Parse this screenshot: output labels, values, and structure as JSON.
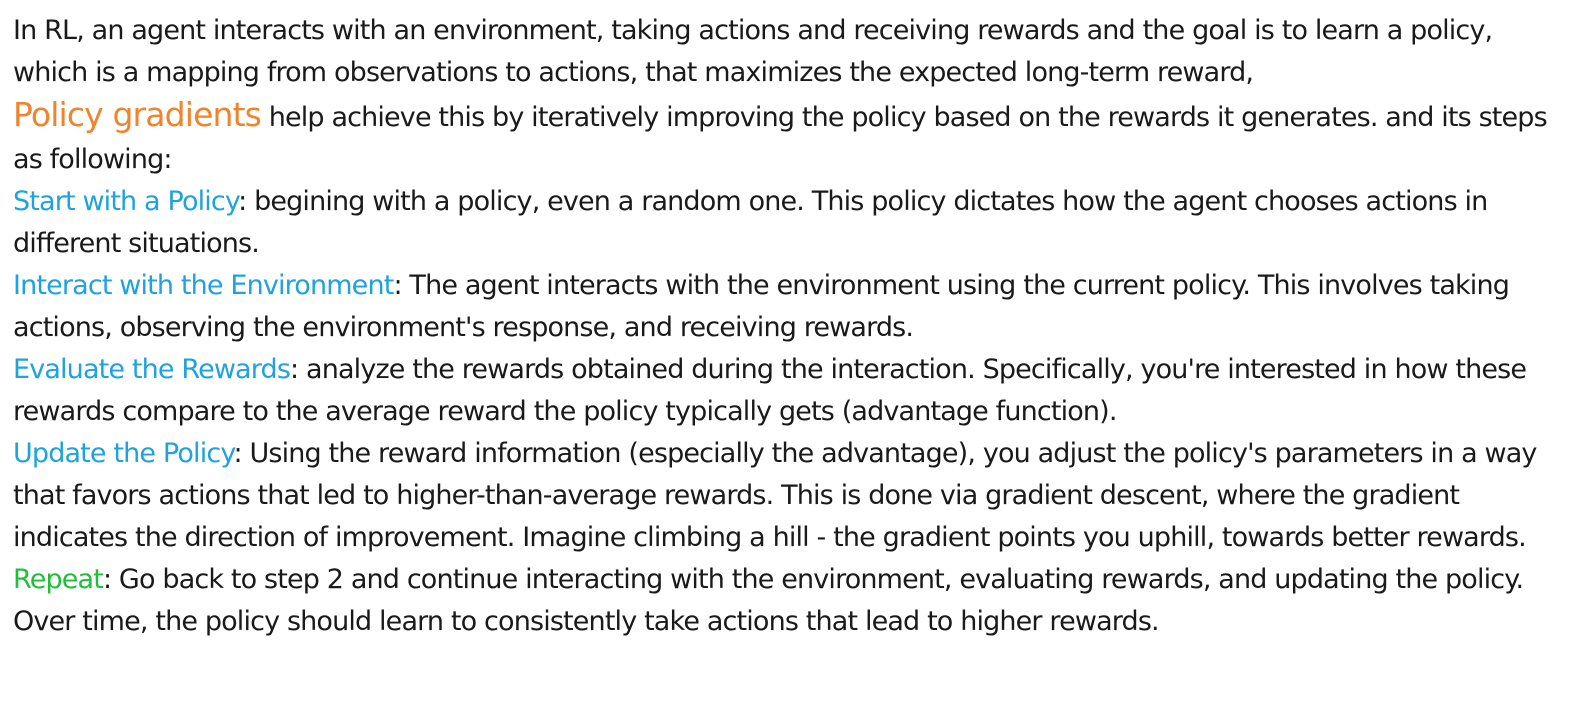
{
  "intro": {
    "line1": "In RL, an agent interacts with an environment, taking actions and receiving rewards and the goal is to learn a policy, which is a mapping from observations to actions, that maximizes the expected long-term reward,",
    "highlight": "Policy gradients",
    "line2": " help achieve this by iteratively improving the policy based on the rewards it generates. and its steps as following:"
  },
  "steps": [
    {
      "term": "Start with a Policy",
      "text": ": begining with a policy, even a random one. This policy dictates how the agent chooses actions in different situations."
    },
    {
      "term": "Interact with the Environment",
      "text": ": The agent interacts with the environment using the current policy. This involves taking actions, observing the environment's response, and receiving rewards."
    },
    {
      "term": "Evaluate the Rewards",
      "text": ": analyze the rewards obtained during the interaction. Specifically, you're interested in how these rewards compare to the average reward the policy typically gets (advantage function)."
    },
    {
      "term": "Update the Policy",
      "text": ": Using the reward information (especially the advantage), you adjust the policy's parameters in a way that favors actions that led to higher-than-average rewards. This is done via gradient descent, where the gradient indicates the direction of improvement. Imagine climbing a hill - the gradient points you uphill, towards better rewards."
    },
    {
      "term": "Repeat",
      "text": ": Go back to step 2 and continue interacting with the environment, evaluating rewards, and updating the policy. Over time, the policy should learn to consistently take actions that lead to higher rewards."
    }
  ],
  "colors": {
    "highlight_orange": "#f0842c",
    "term_blue": "#1fa2dd",
    "term_green": "#1fbf3a",
    "body_text": "#1a1a1a"
  }
}
